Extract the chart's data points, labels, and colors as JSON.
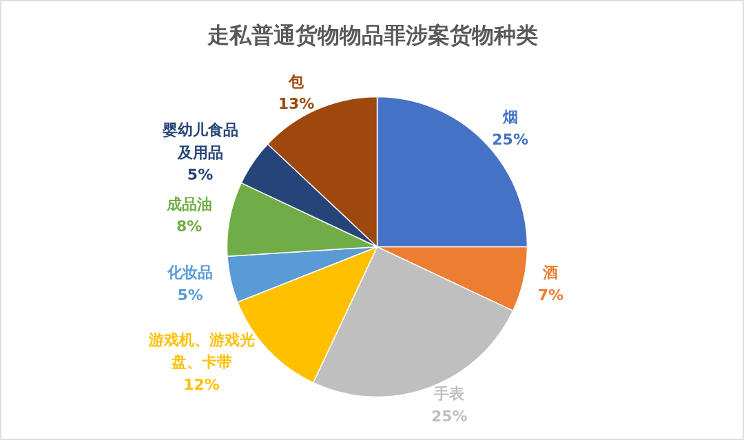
{
  "chart_data": {
    "type": "pie",
    "title": "走私普通货物物品罪涉案货物种类",
    "categories": [
      "烟",
      "酒",
      "手表",
      "游戏机、游戏光盘、卡带",
      "化妆品",
      "成品油",
      "婴幼儿食品及用品",
      "包"
    ],
    "values": [
      25,
      7,
      25,
      12,
      5,
      8,
      5,
      13
    ],
    "value_labels": [
      "25%",
      "7%",
      "25%",
      "12%",
      "5%",
      "8%",
      "5%",
      "13%"
    ],
    "colors": [
      "#4472c4",
      "#ed7d31",
      "#bfbfbf",
      "#ffc000",
      "#5b9bd5",
      "#70ad47",
      "#264478",
      "#9e480e"
    ]
  }
}
